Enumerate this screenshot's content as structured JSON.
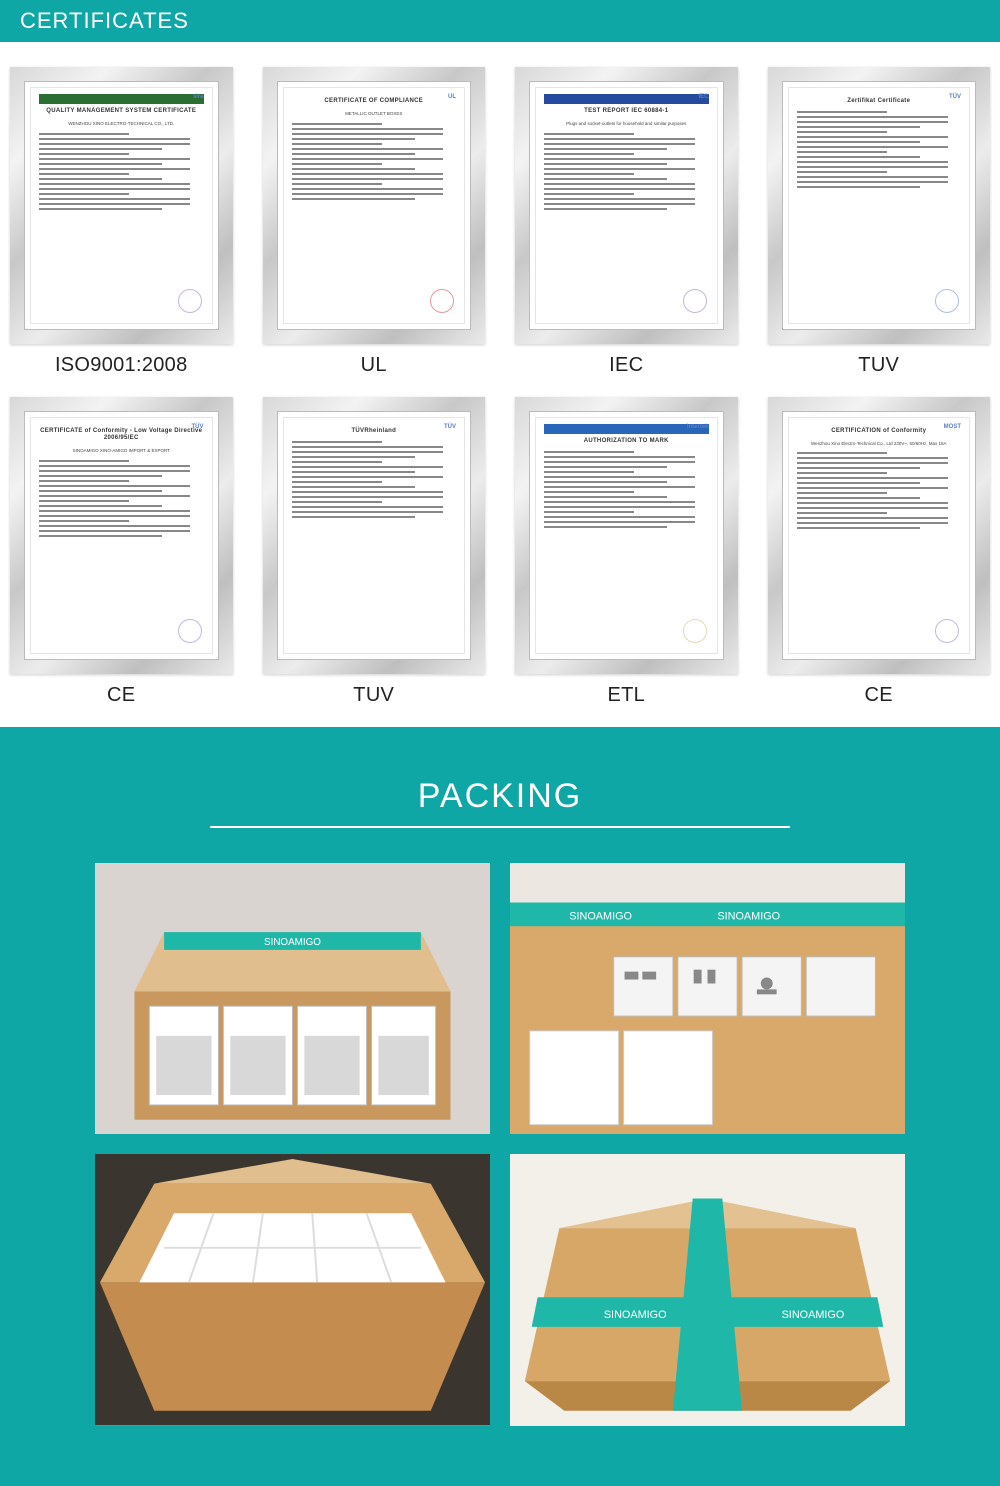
{
  "colors": {
    "accent": "#0fa6a6",
    "white": "#ffffff",
    "text": "#222222",
    "frame_light": "#f3f3f3",
    "frame_dark": "#c8c8c8",
    "carton": "#c9985e",
    "carton_light": "#e1be8d",
    "tape": "#1fb8a8"
  },
  "certificates_section": {
    "title": "CERTIFICATES",
    "items": [
      {
        "label": "ISO9001:2008",
        "doc_title": "QUALITY MANAGEMENT SYSTEM CERTIFICATE",
        "doc_subtitle": "WENZHOU XINO ELECTRO-TECHNICAL CO., LTD.",
        "band_color": "#2a6e32",
        "logo_text": "sira",
        "stamp_color": "#8a6fb3"
      },
      {
        "label": "UL",
        "doc_title": "CERTIFICATE OF COMPLIANCE",
        "doc_subtitle": "METALLIC OUTLET BOXES",
        "band_color": "",
        "logo_text": "UL",
        "stamp_color": "#d03030"
      },
      {
        "label": "IEC",
        "doc_title": "TEST REPORT IEC 60884-1",
        "doc_subtitle": "Plugs and socket-outlets for household and similar purposes",
        "band_color": "#264aa0",
        "logo_text": "IEC",
        "stamp_color": "#8a6fb3"
      },
      {
        "label": "TUV",
        "doc_title": "Zertifikat  Certificate",
        "doc_subtitle": "",
        "band_color": "",
        "logo_text": "TÜV",
        "stamp_color": "#5a7fc7"
      },
      {
        "label": "CE",
        "doc_title": "CERTIFICATE of Conformity - Low Voltage Directive 2006/95/EC",
        "doc_subtitle": "SINOAMIGO XINO-AMIGO IMPORT & EXPORT",
        "band_color": "",
        "logo_text": "TÜV",
        "stamp_color": "#8a6fb3"
      },
      {
        "label": "TUV",
        "doc_title": "TÜVRheinland",
        "doc_subtitle": "",
        "band_color": "",
        "logo_text": "TÜV",
        "stamp_color": ""
      },
      {
        "label": "ETL",
        "doc_title": "AUTHORIZATION TO MARK",
        "doc_subtitle": "",
        "band_color": "#2766b8",
        "logo_text": "Intertek",
        "stamp_color": "#c9b66a"
      },
      {
        "label": "CE",
        "doc_title": "CERTIFICATION of Conformity",
        "doc_subtitle": "Wenzhou Xino Electro-Technical Co., Ltd  230V~, 50/60Hz, Max 16A",
        "band_color": "",
        "logo_text": "MOST",
        "stamp_color": "#8a6fb3"
      }
    ]
  },
  "packing_section": {
    "title": "PACKING",
    "brand_tape_text": "SINOAMIGO",
    "images": [
      {
        "description": "Open carton containing four individually boxed sockets with teal SINOAMIGO tape visible"
      },
      {
        "description": "Close-up of packaged white socket modules in open carton with teal brand tape"
      },
      {
        "description": "Top-down view of carton filled with white inner boxes, flaps open"
      },
      {
        "description": "Sealed closed carton wrapped with crossed teal SINOAMIGO branded tape"
      }
    ]
  }
}
